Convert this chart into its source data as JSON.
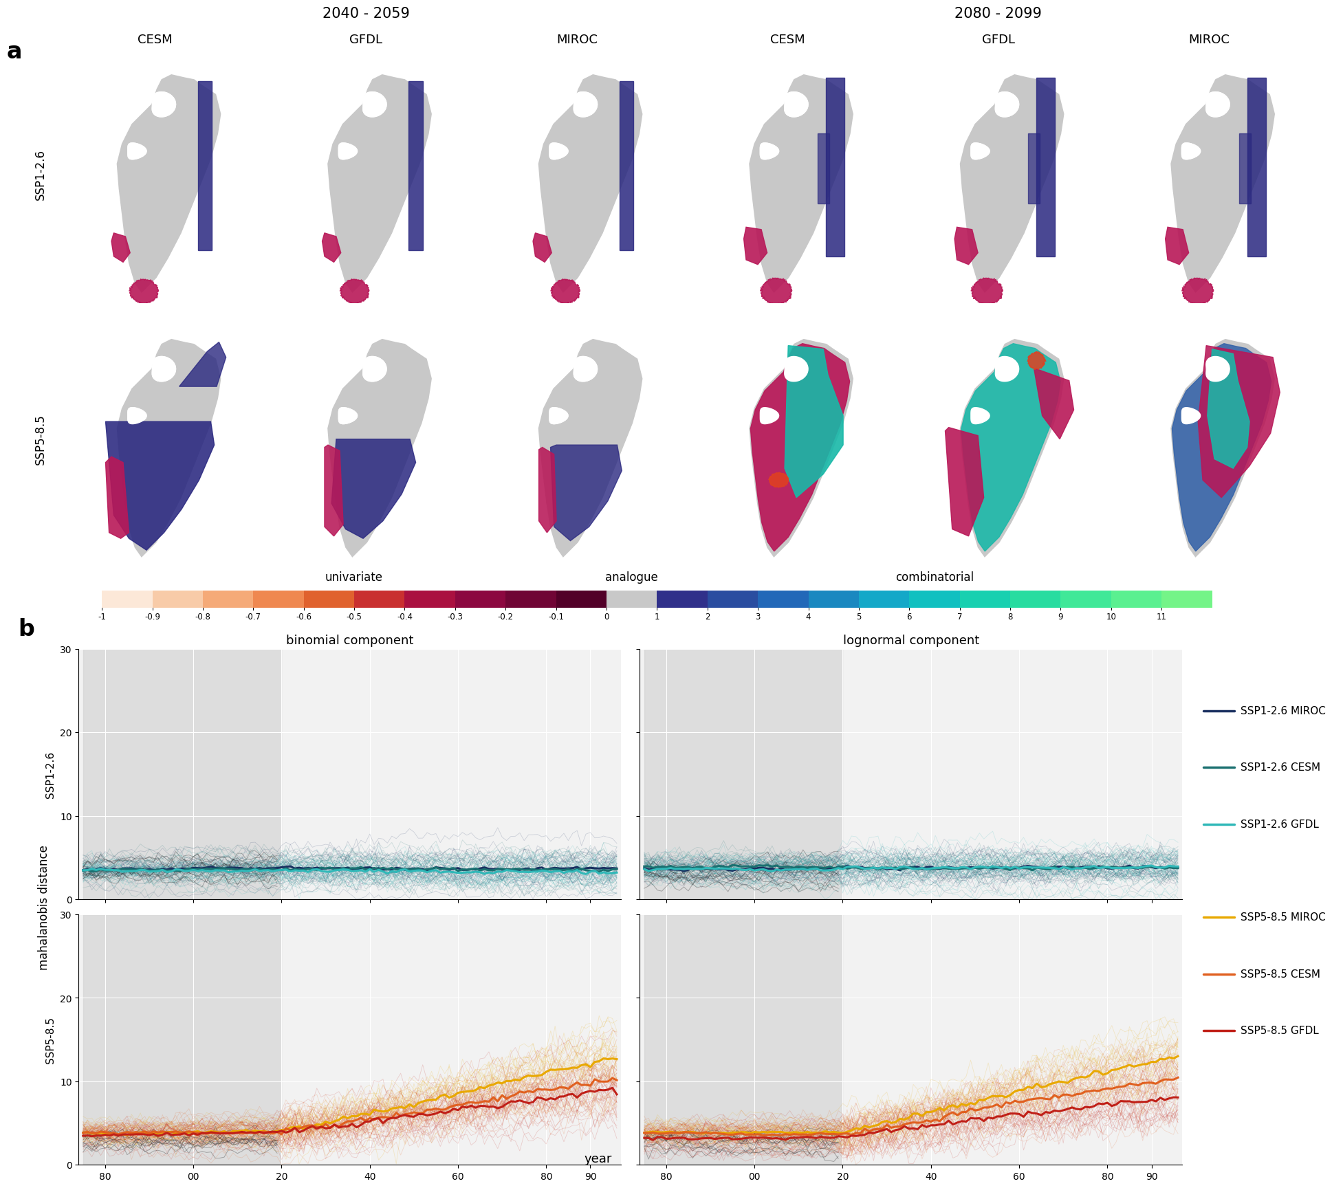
{
  "period_labels": [
    "2040 - 2059",
    "2080 - 2099"
  ],
  "model_labels": [
    "CESM",
    "GFDL",
    "MIROC",
    "CESM",
    "GFDL",
    "MIROC"
  ],
  "ssp_labels": [
    "SSP1-2.6",
    "SSP5-8.5"
  ],
  "colorbar_ticks": [
    -1,
    -0.9,
    -0.8,
    -0.7,
    -0.6,
    -0.5,
    -0.4,
    -0.3,
    -0.2,
    -0.1,
    0,
    1,
    2,
    3,
    4,
    5,
    6,
    7,
    8,
    9,
    10,
    11
  ],
  "univariate_colors": [
    "#fce8d8",
    "#f8cba8",
    "#f5aa78",
    "#ef8850",
    "#e0622e",
    "#c93030",
    "#aa1040",
    "#8c0840",
    "#700535",
    "#520028"
  ],
  "analogue_color": "#c8c8c8",
  "combinatorial_colors": [
    "#30308a",
    "#2a4da0",
    "#2268b8",
    "#1a88c0",
    "#14a8c8",
    "#10c0c0",
    "#18d0b0",
    "#28dca0",
    "#40e898",
    "#5af090",
    "#74f488"
  ],
  "map_gray": "#c8c8c8",
  "map_white": "#ffffff",
  "ssp126_line_colors": [
    "#1a3060",
    "#1a7070",
    "#30b8b8"
  ],
  "ssp585_line_colors": [
    "#e8a800",
    "#e06020",
    "#c02018"
  ],
  "legend_labels_126": [
    "SSP1-2.6 MIROC",
    "SSP1-2.6 CESM",
    "SSP1-2.6 GFDL"
  ],
  "legend_labels_585": [
    "SSP5-8.5 MIROC",
    "SSP5-8.5 CESM",
    "SSP5-8.5 GFDL"
  ],
  "xlabel": "year",
  "ylabel": "mahalanobis distance",
  "binomial_label": "binomial component",
  "lognormal_label": "lognormal component",
  "ssp126_label": "SSP1-2.6",
  "ssp585_label": "SSP5-8.5"
}
